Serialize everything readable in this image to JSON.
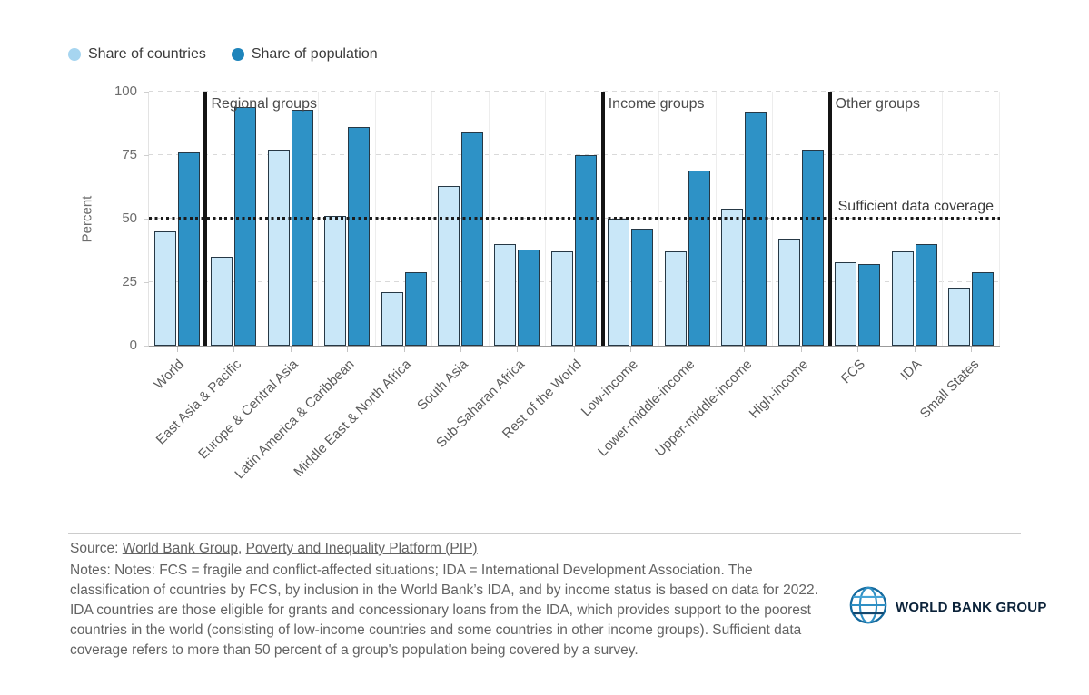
{
  "legend": {
    "items": [
      {
        "label": "Share of countries",
        "color": "#a6d5f0"
      },
      {
        "label": "Share of population",
        "color": "#1e84bb"
      }
    ]
  },
  "chart_data": {
    "type": "bar",
    "title": "",
    "ylabel": "Percent",
    "xlabel": "",
    "ylim": [
      0,
      100
    ],
    "yticks": [
      0,
      25,
      50,
      75,
      100
    ],
    "grid": "horizontal-dashed",
    "legend_position": "top-left",
    "categories": [
      "World",
      "East Asia & Pacific",
      "Europe & Central Asia",
      "Latin America & Caribbean",
      "Middle East & North Africa",
      "South Asia",
      "Sub-Saharan Africa",
      "Rest of the World",
      "Low-income",
      "Lower-middle-income",
      "Upper-middle-income",
      "High-income",
      "FCS",
      "IDA",
      "Small States"
    ],
    "series": [
      {
        "name": "Share of countries",
        "color": "#c9e7f8",
        "values": [
          45,
          35,
          77,
          51,
          21,
          63,
          40,
          37,
          50,
          37,
          54,
          42,
          33,
          37,
          23
        ]
      },
      {
        "name": "Share of population",
        "color": "#2e92c6",
        "values": [
          76,
          94,
          93,
          86,
          29,
          84,
          38,
          75,
          46,
          69,
          92,
          77,
          32,
          40,
          29
        ]
      }
    ],
    "groups": [
      {
        "label": "Regional groups",
        "before_index": 1
      },
      {
        "label": "Income groups",
        "before_index": 8
      },
      {
        "label": "Other groups",
        "before_index": 12
      }
    ],
    "threshold": {
      "value": 50,
      "label": "Sufficient data coverage"
    },
    "bar_border_color": "#263845",
    "separator_color": "#141414"
  },
  "footer": {
    "source_prefix": "Source: ",
    "source_link1": "World Bank Group",
    "source_separator": ", ",
    "source_link2": "Poverty and Inequality Platform (PIP)",
    "notes": "Notes: Notes: FCS = fragile and conflict-affected situations; IDA = International Development Association. The classification of countries by FCS, by inclusion in the World Bank’s IDA, and by income status is based on data for 2022. IDA countries are those eligible for grants and concessionary loans from the IDA, which provides support to the poorest countries in the world (consisting of low-income countries and some countries in other income groups). Sufficient data coverage refers to more than 50 percent of a group's population being covered by a survey.",
    "logo_text": "WORLD BANK GROUP"
  }
}
